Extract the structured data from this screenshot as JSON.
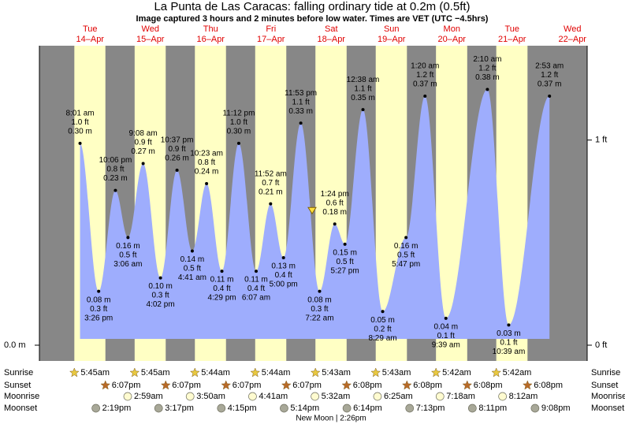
{
  "chart_data": {
    "type": "tide",
    "title": "La Punta de Las Caracas: falling  ordinary tide at 0.2m (0.5ft)",
    "subtitle": "Image captured 3 hours and 2 minutes before low water. Times are VET (UTC −4.5hrs)",
    "now_height": 0.2,
    "ylim": [
      0,
      0.445
    ],
    "yticks": [
      {
        "value": 0,
        "label": "0.0 m"
      }
    ],
    "y2lim": [
      0,
      1.46
    ],
    "y2ticks": [
      {
        "value": 0,
        "label": "0 ft"
      },
      {
        "value": 1,
        "label": "1 ft"
      }
    ],
    "colors": {
      "night": "#878787",
      "day": "#ffffc4",
      "water": "#9eadfd"
    },
    "row_labels": [
      "Sunrise",
      "Sunset",
      "Moonrise",
      "Moonset"
    ],
    "moon_phase": "New Moon | 2:26pm",
    "days": [
      {
        "name": "Tue",
        "date": "14–Apr",
        "sunrise": "5:45am",
        "sunset": "6:07pm",
        "moonset": "2:19pm",
        "tides": [
          {
            "time": "8:01 am",
            "ft": "1.0 ft",
            "height": 0.3,
            "m": "0.30 m"
          },
          {
            "time": "3:26 pm",
            "ft": "0.3 ft",
            "height": 0.08,
            "m": "0.08 m"
          },
          {
            "time": "10:06 pm",
            "ft": "0.8 ft",
            "height": 0.23,
            "m": "0.23 m"
          }
        ]
      },
      {
        "name": "Wed",
        "date": "15–Apr",
        "sunrise": "5:45am",
        "sunset": "6:07pm",
        "moonrise": "2:59am",
        "moonset": "3:17pm",
        "tides": [
          {
            "time": "3:06 am",
            "ft": "0.5 ft",
            "height": 0.16,
            "m": "0.16 m"
          },
          {
            "time": "9:08 am",
            "ft": "0.9 ft",
            "height": 0.27,
            "m": "0.27 m"
          },
          {
            "time": "4:02 pm",
            "ft": "0.3 ft",
            "height": 0.1,
            "m": "0.10 m"
          },
          {
            "time": "10:37 pm",
            "ft": "0.9 ft",
            "height": 0.26,
            "m": "0.26 m"
          }
        ]
      },
      {
        "name": "Thu",
        "date": "16–Apr",
        "sunrise": "5:44am",
        "sunset": "6:07pm",
        "moonrise": "3:50am",
        "moonset": "4:15pm",
        "tides": [
          {
            "time": "4:41 am",
            "ft": "0.5 ft",
            "height": 0.14,
            "m": "0.14 m"
          },
          {
            "time": "10:23 am",
            "ft": "0.8 ft",
            "height": 0.24,
            "m": "0.24 m"
          },
          {
            "time": "4:29 pm",
            "ft": "0.4 ft",
            "height": 0.11,
            "m": "0.11 m"
          },
          {
            "time": "11:12 pm",
            "ft": "1.0 ft",
            "height": 0.3,
            "m": "0.30 m"
          }
        ]
      },
      {
        "name": "Fri",
        "date": "17–Apr",
        "sunrise": "5:44am",
        "sunset": "6:07pm",
        "moonrise": "4:41am",
        "moonset": "5:14pm",
        "tides": [
          {
            "time": "6:07 am",
            "ft": "0.4 ft",
            "height": 0.11,
            "m": "0.11 m"
          },
          {
            "time": "11:52 am",
            "ft": "0.7 ft",
            "height": 0.21,
            "m": "0.21 m"
          },
          {
            "time": "5:00 pm",
            "ft": "0.4 ft",
            "height": 0.13,
            "m": "0.13 m"
          },
          {
            "time": "11:53 pm",
            "ft": "1.1 ft",
            "height": 0.33,
            "m": "0.33 m"
          }
        ]
      },
      {
        "name": "Sat",
        "date": "18–Apr",
        "sunrise": "5:43am",
        "sunset": "6:08pm",
        "moonrise": "5:32am",
        "moonset": "6:14pm",
        "tides": [
          {
            "time": "7:22 am",
            "ft": "0.3 ft",
            "height": 0.08,
            "m": "0.08 m"
          },
          {
            "time": "1:24 pm",
            "ft": "0.6 ft",
            "height": 0.18,
            "m": "0.18 m"
          },
          {
            "time": "5:27 pm",
            "ft": "0.5 ft",
            "height": 0.15,
            "m": "0.15 m"
          }
        ]
      },
      {
        "name": "Sun",
        "date": "19–Apr",
        "sunrise": "5:43am",
        "sunset": "6:08pm",
        "moonrise": "6:25am",
        "moonset": "7:13pm",
        "tides": [
          {
            "time": "12:38 am",
            "ft": "1.1 ft",
            "height": 0.35,
            "m": "0.35 m"
          },
          {
            "time": "8:29 am",
            "ft": "0.2 ft",
            "height": 0.05,
            "m": "0.05 m"
          },
          {
            "time": "5:47 pm",
            "ft": "0.5 ft",
            "height": 0.16,
            "m": "0.16 m"
          }
        ]
      },
      {
        "name": "Mon",
        "date": "20–Apr",
        "sunrise": "5:42am",
        "sunset": "6:08pm",
        "moonrise": "7:18am",
        "moonset": "8:11pm",
        "tides": [
          {
            "time": "1:20 am",
            "ft": "1.2 ft",
            "height": 0.37,
            "m": "0.37 m"
          },
          {
            "time": "9:39 am",
            "ft": "0.1 ft",
            "height": 0.04,
            "m": "0.04 m"
          }
        ]
      },
      {
        "name": "Tue",
        "date": "21–Apr",
        "sunrise": "5:42am",
        "sunset": "6:08pm",
        "moonrise": "8:12am",
        "moonset": "9:08pm",
        "tides": [
          {
            "time": "2:10 am",
            "ft": "1.2 ft",
            "height": 0.38,
            "m": "0.38 m"
          },
          {
            "time": "10:39 am",
            "ft": "0.1 ft",
            "height": 0.03,
            "m": "0.03 m"
          }
        ]
      },
      {
        "name": "Wed",
        "date": "22–Apr",
        "tides": [
          {
            "time": "2:53 am",
            "ft": "1.2 ft",
            "height": 0.37,
            "m": "0.37 m"
          }
        ]
      }
    ]
  }
}
